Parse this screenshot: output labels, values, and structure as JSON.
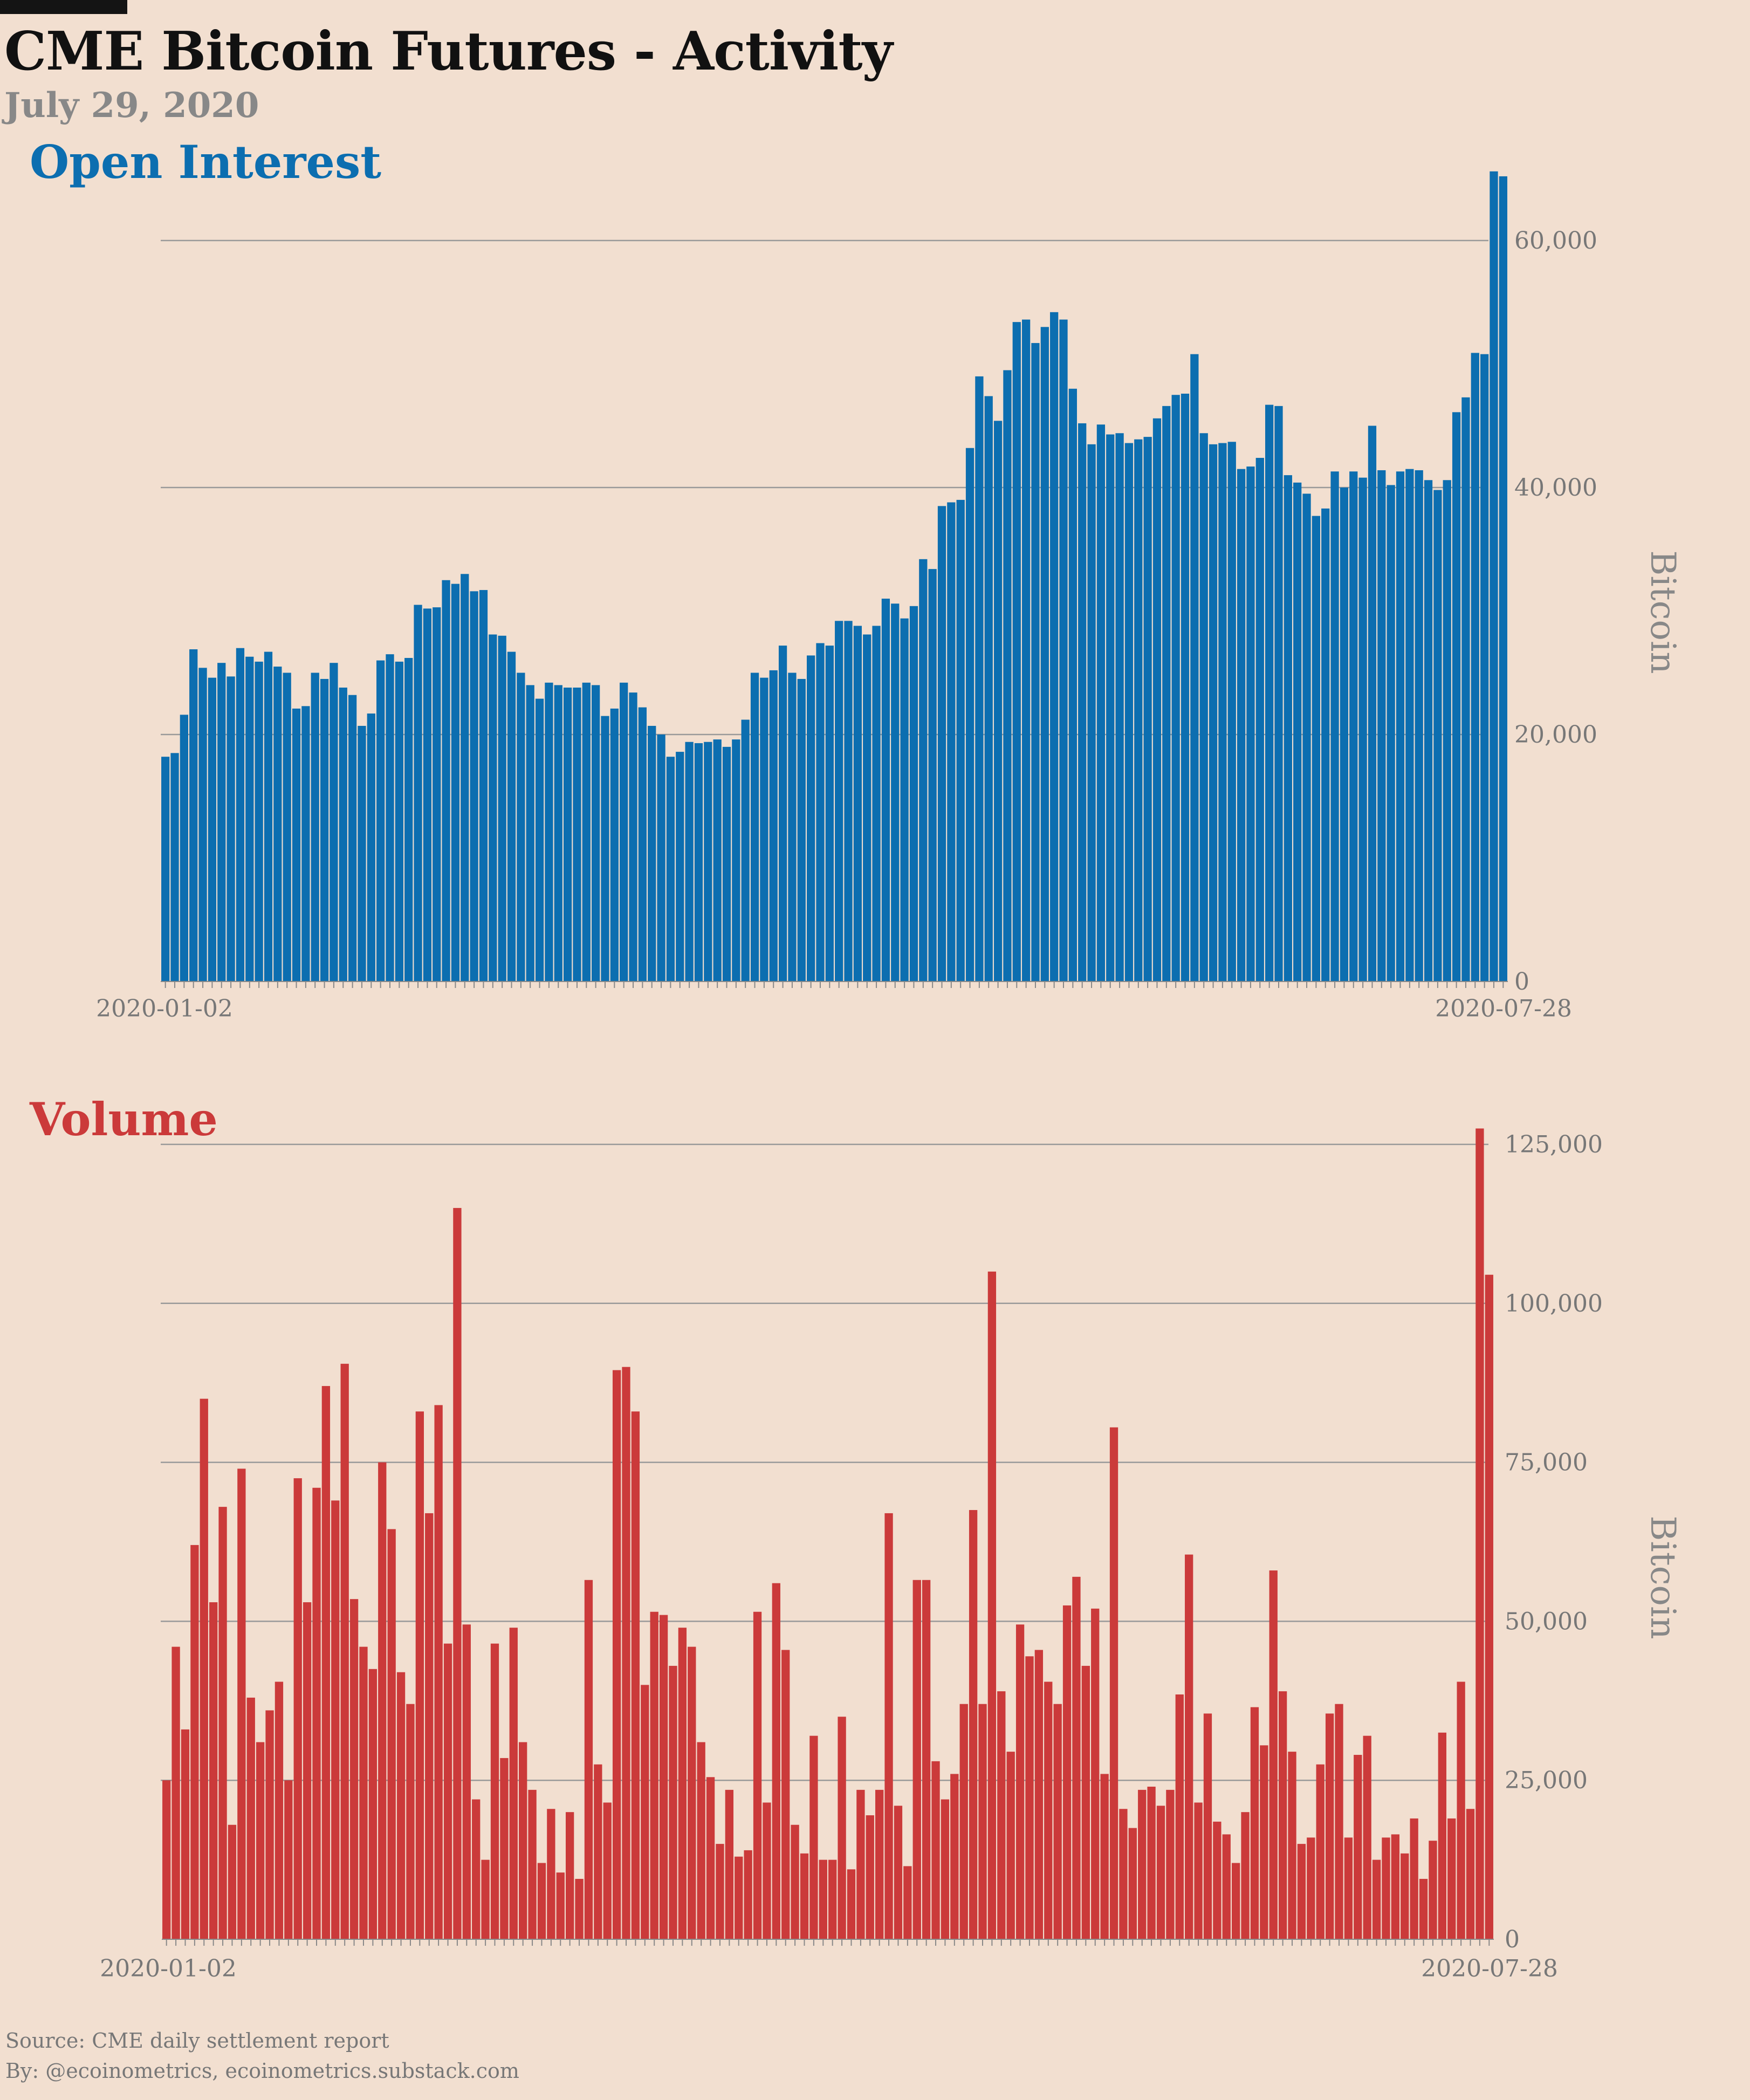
{
  "header": {
    "title": "CME Bitcoin Futures - Activity",
    "date": "July 29, 2020"
  },
  "footer": {
    "source": "Source: CME daily settlement report",
    "byline": "By: @ecoinometrics, ecoinometrics.substack.com"
  },
  "colors": {
    "background": "#f2dfd0",
    "open_interest": "#0c6eb0",
    "volume": "#cb3a3a",
    "grid": "#999999",
    "axis_text": "#777777"
  },
  "chart_data": [
    {
      "type": "bar",
      "title": "Open Interest",
      "ylabel": "Bitcoin",
      "ylim": [
        0,
        65000
      ],
      "yticks": [
        0,
        20000,
        40000,
        60000
      ],
      "ytick_labels": [
        "0",
        "20,000",
        "40,000",
        "60,000"
      ],
      "x_start_label": "2020-01-02",
      "x_end_label": "2020-07-28",
      "grid": true,
      "values": [
        18200,
        18500,
        21600,
        26900,
        25400,
        24600,
        25800,
        24700,
        27000,
        26300,
        25900,
        26700,
        25500,
        25000,
        22100,
        22300,
        25000,
        24500,
        25800,
        23800,
        23200,
        20700,
        21700,
        26000,
        26500,
        25900,
        26200,
        30500,
        30200,
        30300,
        32500,
        32200,
        33000,
        31600,
        31700,
        28100,
        28000,
        26700,
        25000,
        24000,
        22900,
        24200,
        24000,
        23800,
        23800,
        24200,
        24000,
        21500,
        22100,
        24200,
        23400,
        22200,
        20700,
        20000,
        18200,
        18600,
        19400,
        19300,
        19400,
        19600,
        19000,
        19600,
        21200,
        25000,
        24600,
        25200,
        27200,
        25000,
        24500,
        26400,
        27400,
        27200,
        29200,
        29200,
        28800,
        28100,
        28800,
        31000,
        30600,
        29400,
        30400,
        34200,
        33400,
        38500,
        38800,
        39000,
        43200,
        49000,
        47400,
        45400,
        49500,
        53400,
        53600,
        51700,
        53000,
        54200,
        53600,
        48000,
        45200,
        43500,
        45100,
        44300,
        44400,
        43600,
        43900,
        44100,
        45600,
        46600,
        47500,
        47600,
        50800,
        44400,
        43500,
        43600,
        43700,
        41500,
        41700,
        42400,
        46700,
        46600,
        41000,
        40400,
        39500,
        37700,
        38300,
        41300,
        40000,
        41300,
        40800,
        45000,
        41400,
        40200,
        41300,
        41500,
        41400,
        40600,
        39800,
        40600,
        46100,
        47300,
        50900,
        50800,
        65600,
        65200
      ]
    },
    {
      "type": "bar",
      "title": "Volume",
      "ylabel": "Bitcoin",
      "ylim": [
        0,
        128000
      ],
      "yticks": [
        0,
        25000,
        50000,
        75000,
        100000,
        125000
      ],
      "ytick_labels": [
        "0",
        "25,000",
        "50,000",
        "75,000",
        "100,000",
        "125,000"
      ],
      "x_start_label": "2020-01-02",
      "x_end_label": "2020-07-28",
      "grid": true,
      "values": [
        25000,
        46000,
        33000,
        62000,
        85000,
        53000,
        68000,
        18000,
        74000,
        38000,
        31000,
        36000,
        40500,
        25000,
        72500,
        53000,
        71000,
        87000,
        69000,
        90500,
        53500,
        46000,
        42500,
        75000,
        64500,
        42000,
        37000,
        83000,
        67000,
        84000,
        46500,
        115000,
        49500,
        22000,
        12500,
        46500,
        28500,
        49000,
        31000,
        23500,
        12000,
        20500,
        10500,
        20000,
        9500,
        56500,
        27500,
        21500,
        89500,
        90000,
        83000,
        40000,
        51500,
        51000,
        43000,
        49000,
        46000,
        31000,
        25500,
        15000,
        23500,
        13000,
        14000,
        51500,
        21500,
        56000,
        45500,
        18000,
        13500,
        32000,
        12500,
        12500,
        35000,
        11000,
        23500,
        19500,
        23500,
        67000,
        21000,
        11500,
        56500,
        56500,
        28000,
        22000,
        26000,
        37000,
        67500,
        37000,
        105000,
        39000,
        29500,
        49500,
        44500,
        45500,
        40500,
        37000,
        52500,
        57000,
        43000,
        52000,
        26000,
        80500,
        20500,
        17500,
        23500,
        24000,
        21000,
        23500,
        38500,
        60500,
        21500,
        35500,
        18500,
        16500,
        12000,
        20000,
        36500,
        30500,
        58000,
        39000,
        29500,
        15000,
        16000,
        27500,
        35500,
        37000,
        16000,
        29000,
        32000,
        12500,
        16000,
        16500,
        13500,
        19000,
        9500,
        15500,
        32500,
        19000,
        40500,
        20500,
        127500,
        104500
      ]
    }
  ]
}
